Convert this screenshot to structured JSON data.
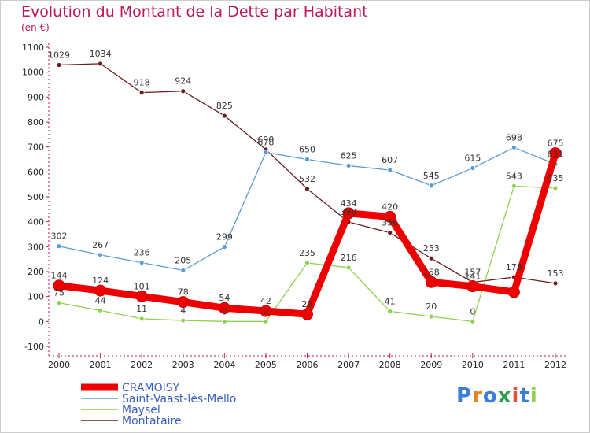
{
  "title": "Evolution du Montant de la Dette par Habitant",
  "subtitle": "(en €)",
  "logo": "Proxiti",
  "chart_data": {
    "type": "line",
    "x": [
      "2000",
      "2001",
      "2002",
      "2003",
      "2004",
      "2005",
      "2006",
      "2007",
      "2008",
      "2009",
      "2010",
      "2011",
      "2012"
    ],
    "ylim": [
      -100,
      1100
    ],
    "yticks": [
      -100,
      0,
      100,
      200,
      300,
      400,
      500,
      600,
      700,
      800,
      900,
      1000,
      1100
    ],
    "grid": "none",
    "legend_position": "bottom-left",
    "series": [
      {
        "name": "CRAMOISY",
        "color": "#ee0000",
        "values": [
          144,
          124,
          101,
          78,
          54,
          42,
          29,
          434,
          420,
          158,
          141,
          118,
          675
        ],
        "labels": [
          "144",
          "124",
          "101",
          "78",
          "54",
          "42",
          "29",
          "434",
          "420",
          "158",
          "141",
          "",
          "675"
        ]
      },
      {
        "name": "Saint-Vaast-lès-Mello",
        "color": "#5b9bd5",
        "values": [
          302,
          267,
          236,
          205,
          299,
          678,
          650,
          625,
          607,
          545,
          615,
          698,
          631
        ],
        "labels": [
          "302",
          "267",
          "236",
          "205",
          "299",
          "678",
          "650",
          "625",
          "607",
          "545",
          "615",
          "698",
          "631"
        ]
      },
      {
        "name": "Maysel",
        "color": "#8fd14f",
        "values": [
          75,
          44,
          11,
          4,
          0,
          0,
          235,
          216,
          41,
          20,
          0,
          543,
          535
        ],
        "labels": [
          "75",
          "44",
          "11",
          "4",
          "0",
          "0",
          "235",
          "216",
          "41",
          "20",
          "0",
          "543",
          "535"
        ]
      },
      {
        "name": "Montataire",
        "color": "#6b1b1b",
        "values": [
          1029,
          1034,
          918,
          924,
          825,
          690,
          532,
          399,
          356,
          253,
          157,
          178,
          153
        ],
        "labels": [
          "1029",
          "1034",
          "918",
          "924",
          "825",
          "690",
          "532",
          "399",
          "356",
          "253",
          "157",
          "178",
          "153"
        ]
      }
    ]
  }
}
